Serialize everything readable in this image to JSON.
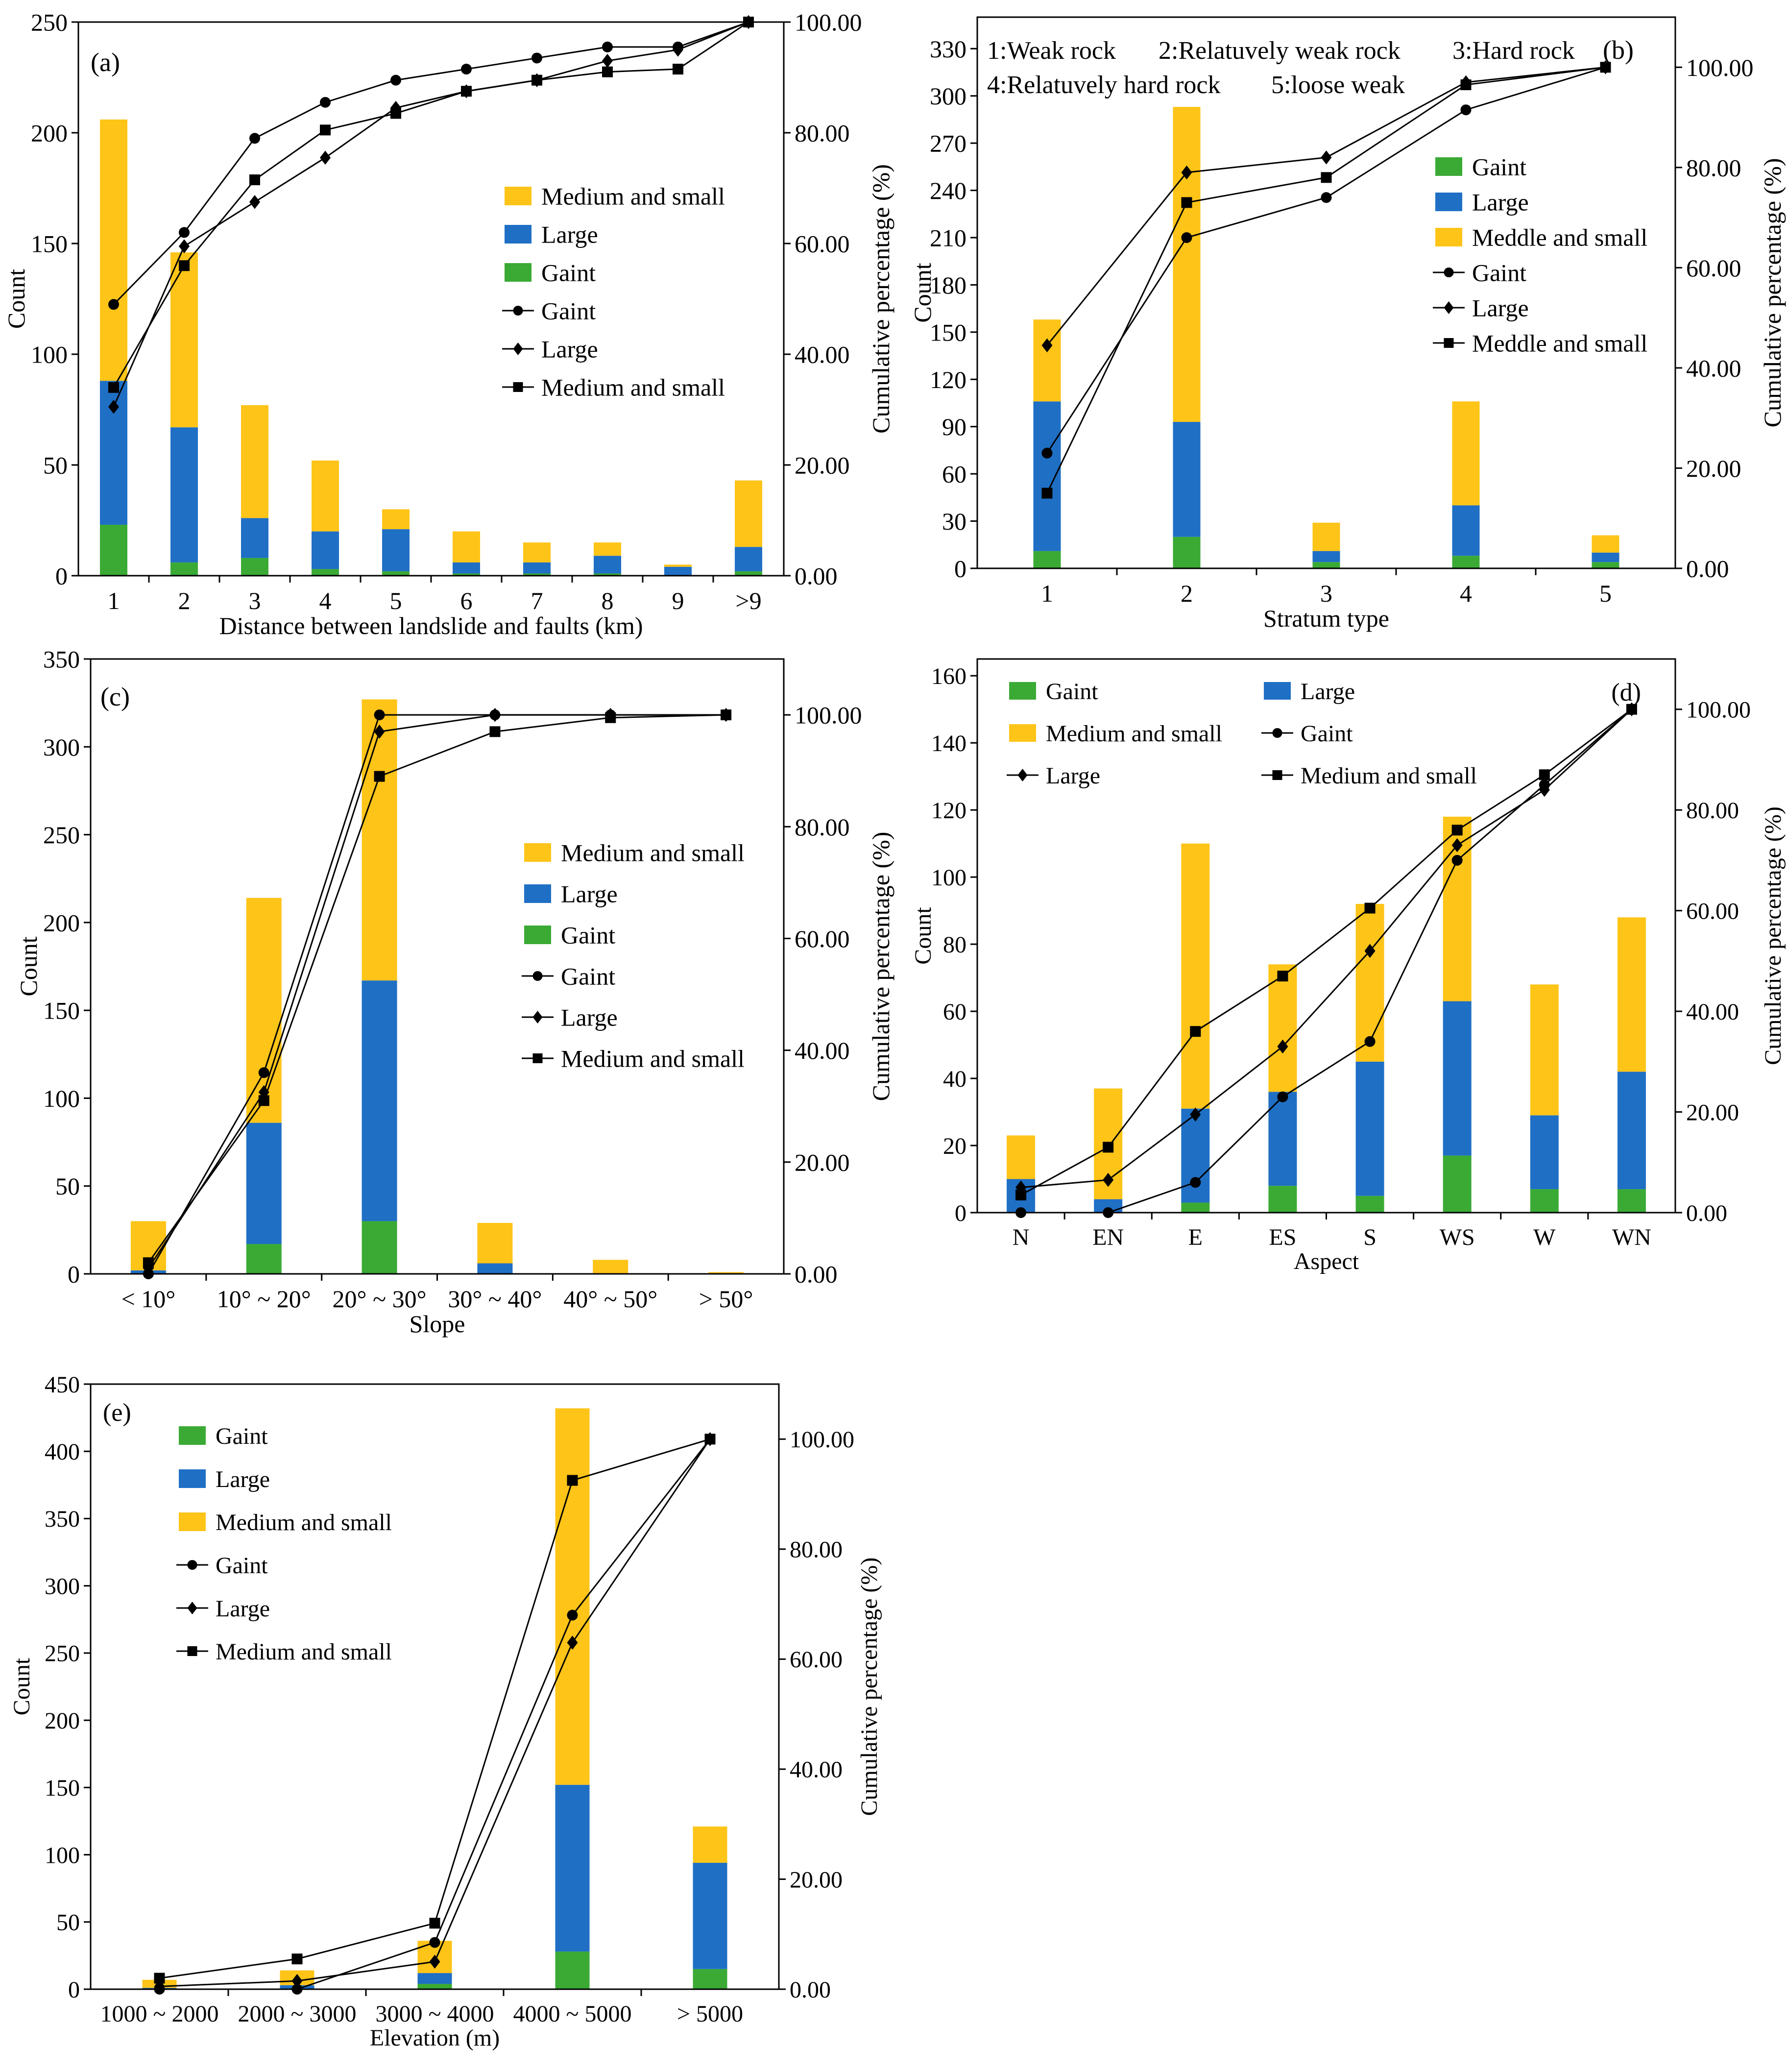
{
  "chart_data": [
    {
      "panel": "(a)",
      "type": "bar",
      "stacked": true,
      "categories": [
        "1",
        "2",
        "3",
        "4",
        "5",
        "6",
        "7",
        "8",
        "9",
        ">9"
      ],
      "xlabel": "Distance between landslide and faults (km)",
      "ylabel": "Count",
      "y2label": "Cumulative percentage (%)",
      "ylim": [
        0,
        250
      ],
      "yticks": [
        0,
        50,
        100,
        150,
        200,
        250
      ],
      "y2lim": [
        0,
        100
      ],
      "y2ticks": [
        "0.00",
        "20.00",
        "40.00",
        "60.00",
        "80.00",
        "100.00"
      ],
      "series": [
        {
          "name": "Gaint",
          "values": [
            23,
            6,
            8,
            3,
            2,
            1,
            1,
            1,
            0,
            2
          ]
        },
        {
          "name": "Large",
          "values": [
            65,
            61,
            18,
            17,
            19,
            5,
            5,
            8,
            4,
            11
          ]
        },
        {
          "name": "Medium and small",
          "values": [
            118,
            79,
            51,
            32,
            9,
            14,
            9,
            6,
            1,
            30
          ]
        }
      ],
      "lines": [
        {
          "name": "Gaint",
          "marker": "circle",
          "values": [
            49,
            62,
            79,
            85.5,
            89.5,
            91.5,
            93.5,
            95.5,
            95.5,
            100
          ]
        },
        {
          "name": "Large",
          "marker": "diamond",
          "values": [
            30.5,
            59.5,
            67.5,
            75.5,
            84.5,
            87.5,
            89.5,
            93,
            95,
            100
          ]
        },
        {
          "name": "Medium and small",
          "marker": "square",
          "values": [
            34,
            56,
            71.5,
            80.5,
            83.5,
            87.5,
            89.5,
            91,
            91.5,
            100
          ]
        }
      ],
      "legend": [
        "Medium and small",
        "Large",
        "Gaint",
        "Gaint",
        "Large",
        "Medium and small"
      ],
      "legend_position": "center-right",
      "annotations": []
    },
    {
      "panel": "(b)",
      "type": "bar",
      "stacked": true,
      "categories": [
        "1",
        "2",
        "3",
        "4",
        "5"
      ],
      "xlabel": "Stratum type",
      "ylabel": "Count",
      "y2label": "Cumulative percentage (%)",
      "ylim": [
        0,
        350
      ],
      "yticks": [
        0,
        30,
        60,
        90,
        120,
        150,
        180,
        210,
        240,
        270,
        300,
        330
      ],
      "y2lim": [
        0,
        110
      ],
      "y2ticks": [
        "0.00",
        "20.00",
        "40.00",
        "60.00",
        "80.00",
        "100.00"
      ],
      "series": [
        {
          "name": "Gaint",
          "values": [
            11,
            20,
            4,
            8,
            4
          ]
        },
        {
          "name": "Large",
          "values": [
            95,
            73,
            7,
            32,
            6
          ]
        },
        {
          "name": "Meddle and small",
          "values": [
            52,
            200,
            18,
            66,
            11
          ]
        }
      ],
      "lines": [
        {
          "name": "Gaint",
          "marker": "circle",
          "values": [
            23,
            66,
            74,
            91.5,
            100
          ]
        },
        {
          "name": "Large",
          "marker": "diamond",
          "values": [
            44.5,
            79,
            82,
            97,
            100
          ]
        },
        {
          "name": "Meddle and small",
          "marker": "square",
          "values": [
            15,
            73,
            78,
            96.5,
            100
          ]
        }
      ],
      "legend": [
        "Gaint",
        "Large",
        "Meddle and small",
        "Gaint",
        "Large",
        "Meddle and small"
      ],
      "legend_position": "center-right",
      "annotations": [
        "1:Weak rock",
        "2:Relatuvely weak rock",
        "3:Hard rock",
        "4:Relatuvely hard rock",
        "5:loose weak"
      ]
    },
    {
      "panel": "(c)",
      "type": "bar",
      "stacked": true,
      "categories": [
        "< 10°",
        "10° ~ 20°",
        "20° ~ 30°",
        "30° ~ 40°",
        "40° ~ 50°",
        "> 50°"
      ],
      "xlabel": "Slope",
      "ylabel": "Count",
      "y2label": "Cumulative percentage (%)",
      "ylim": [
        0,
        350
      ],
      "yticks": [
        0,
        50,
        100,
        150,
        200,
        250,
        300,
        350
      ],
      "y2lim": [
        0,
        110
      ],
      "y2ticks": [
        "0.00",
        "20.00",
        "40.00",
        "60.00",
        "80.00",
        "100.00"
      ],
      "series": [
        {
          "name": "Gaint",
          "values": [
            0,
            17,
            30,
            0,
            0,
            0
          ]
        },
        {
          "name": "Large",
          "values": [
            2,
            69,
            137,
            6,
            0,
            0
          ]
        },
        {
          "name": "Medium and small",
          "values": [
            28,
            128,
            160,
            23,
            8,
            1
          ]
        }
      ],
      "lines": [
        {
          "name": "Gaint",
          "marker": "circle",
          "values": [
            0,
            36,
            100,
            100,
            100,
            100
          ]
        },
        {
          "name": "Large",
          "marker": "diamond",
          "values": [
            1,
            32.5,
            97,
            100,
            100,
            100
          ]
        },
        {
          "name": "Medium and small",
          "marker": "square",
          "values": [
            2,
            31,
            89,
            97,
            99.5,
            100
          ]
        }
      ],
      "legend": [
        "Medium and small",
        "Large",
        "Gaint",
        "Gaint",
        "Large",
        "Medium and small"
      ],
      "legend_position": "center-right",
      "annotations": []
    },
    {
      "panel": "(d)",
      "type": "bar",
      "stacked": true,
      "categories": [
        "N",
        "EN",
        "E",
        "ES",
        "S",
        "WS",
        "W",
        "WN"
      ],
      "xlabel": "Aspect",
      "ylabel": "Count",
      "y2label": "Cumulative percentage (%)",
      "ylim": [
        0,
        165
      ],
      "yticks": [
        0,
        20,
        40,
        60,
        80,
        100,
        120,
        140,
        160
      ],
      "y2lim": [
        0,
        110
      ],
      "y2ticks": [
        "0.00",
        "20.00",
        "40.00",
        "60.00",
        "80.00",
        "100.00"
      ],
      "series": [
        {
          "name": "Gaint",
          "values": [
            0,
            0,
            3,
            8,
            5,
            17,
            7,
            7
          ]
        },
        {
          "name": "Large",
          "values": [
            10,
            4,
            28,
            28,
            40,
            46,
            22,
            35
          ]
        },
        {
          "name": "Medium and small",
          "values": [
            13,
            33,
            79,
            38,
            47,
            55,
            39,
            46
          ]
        }
      ],
      "lines": [
        {
          "name": "Gaint",
          "marker": "circle",
          "values": [
            0,
            0,
            6,
            23,
            34,
            70,
            85,
            100
          ]
        },
        {
          "name": "Large",
          "marker": "diamond",
          "values": [
            5,
            6.5,
            19.5,
            33,
            52,
            73,
            84,
            100
          ]
        },
        {
          "name": "Medium and small",
          "marker": "square",
          "values": [
            3.5,
            13,
            36,
            47,
            60.5,
            76,
            87,
            100
          ]
        }
      ],
      "legend": [
        "Gaint",
        "Large",
        "Medium and small",
        "Gaint",
        "Large",
        "Medium and small"
      ],
      "legend_position": "top",
      "annotations": []
    },
    {
      "panel": "(e)",
      "type": "bar",
      "stacked": true,
      "categories": [
        "1000 ~ 2000",
        "2000 ~ 3000",
        "3000 ~ 4000",
        "4000 ~ 5000",
        "> 5000"
      ],
      "xlabel": "Elevation (m)",
      "ylabel": "Count",
      "y2label": "Cumulative percentage (%)",
      "ylim": [
        0,
        450
      ],
      "yticks": [
        0,
        50,
        100,
        150,
        200,
        250,
        300,
        350,
        400,
        450
      ],
      "y2lim": [
        0,
        110
      ],
      "y2ticks": [
        "0.00",
        "20.00",
        "40.00",
        "60.00",
        "80.00",
        "100.00"
      ],
      "series": [
        {
          "name": "Gaint",
          "values": [
            0,
            0,
            4,
            28,
            15
          ]
        },
        {
          "name": "Large",
          "values": [
            1,
            3,
            8,
            124,
            79
          ]
        },
        {
          "name": "Medium and small",
          "values": [
            6,
            11,
            24,
            280,
            27
          ]
        }
      ],
      "lines": [
        {
          "name": "Gaint",
          "marker": "circle",
          "values": [
            0,
            0,
            8.5,
            68,
            100
          ]
        },
        {
          "name": "Large",
          "marker": "diamond",
          "values": [
            0.5,
            1.5,
            5,
            63,
            100
          ]
        },
        {
          "name": "Medium and small",
          "marker": "square",
          "values": [
            2,
            5.5,
            12,
            92.5,
            100
          ]
        }
      ],
      "legend": [
        "Gaint",
        "Large",
        "Medium and small",
        "Gaint",
        "Large",
        "Medium and small"
      ],
      "legend_position": "top-left",
      "annotations": []
    }
  ],
  "colors": {
    "Gaint": "#3aaa35",
    "Large": "#1f6fc5",
    "Medium and small": "#fec418",
    "Meddle and small": "#fec418",
    "line": "#000000"
  }
}
